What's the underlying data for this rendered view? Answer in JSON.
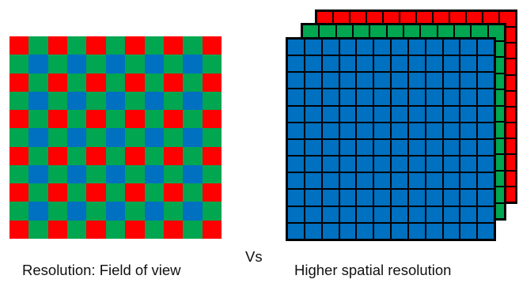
{
  "colors": {
    "red": "#ff0000",
    "green": "#00a650",
    "blue": "#0070c0",
    "cell_border": "#000000"
  },
  "bayer_pattern": {
    "rows": 11,
    "cols": 11,
    "row_patterns": [
      [
        "red",
        "green"
      ],
      [
        "green",
        "blue"
      ]
    ]
  },
  "stack": {
    "grid_size": 12,
    "layers": [
      "red",
      "green",
      "blue"
    ]
  },
  "labels": {
    "left": "Resolution: Field of view",
    "vs": "Vs",
    "right": "Higher spatial resolution"
  }
}
